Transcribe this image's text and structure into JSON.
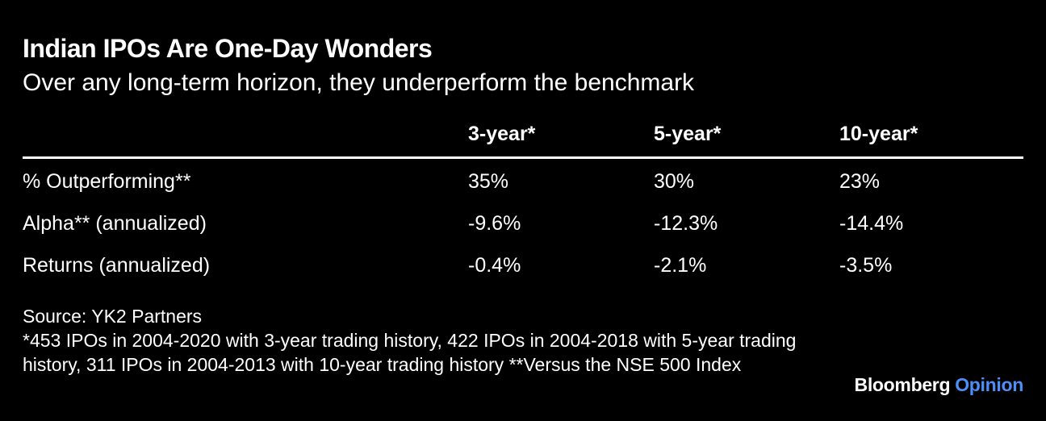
{
  "chart_data": {
    "type": "table",
    "title": "Indian IPOs Are One-Day Wonders",
    "subtitle": "Over any long-term horizon, they underperform the benchmark",
    "columns": [
      "",
      "3-year*",
      "5-year*",
      "10-year*"
    ],
    "rows": [
      {
        "label": "% Outperforming**",
        "values": [
          "35%",
          "30%",
          "23%"
        ]
      },
      {
        "label": "Alpha** (annualized)",
        "values": [
          "-9.6%",
          "-12.3%",
          "-14.4%"
        ]
      },
      {
        "label": "Returns (annualized)",
        "values": [
          "-0.4%",
          "-2.1%",
          "-3.5%"
        ]
      }
    ],
    "source": "Source: YK2 Partners",
    "note": "*453 IPOs in 2004-2020 with 3-year trading history, 422 IPOs in 2004-2018 with 5-year trading history, 311 IPOs in 2004-2013 with 10-year trading history **Versus the NSE 500 Index"
  },
  "branding": {
    "brand": "Bloomberg",
    "section": "Opinion",
    "accent_color": "#4d8ff7"
  }
}
